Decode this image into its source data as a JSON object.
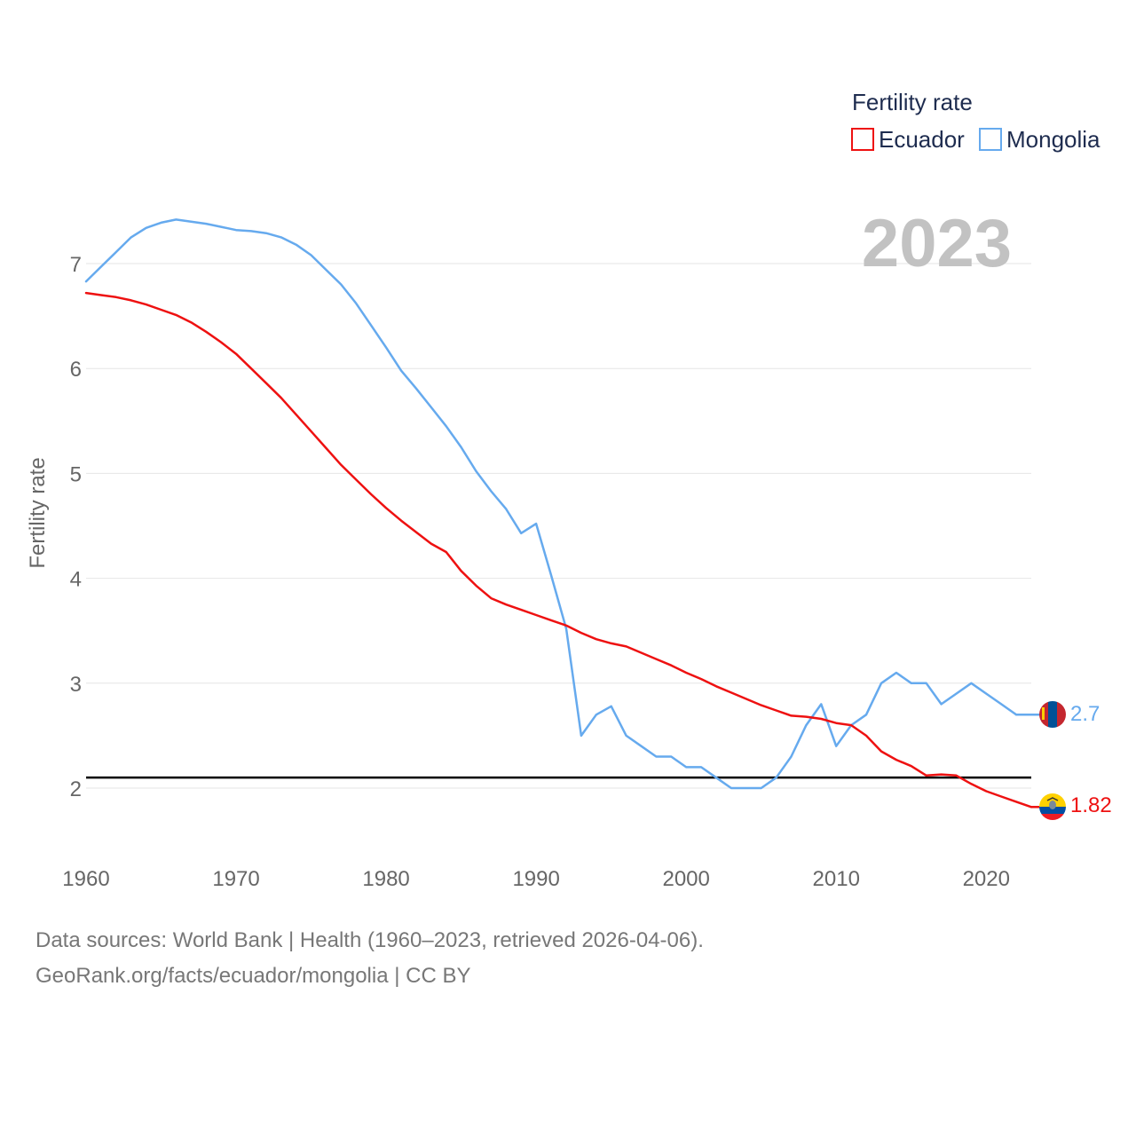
{
  "chart_data": {
    "type": "line",
    "legend_title": "Fertility rate",
    "legend_position": "top-right",
    "ylabel": "Fertility rate",
    "year_label": "2023",
    "xlim": [
      1960,
      2023
    ],
    "ylim": [
      1.6,
      7.6
    ],
    "x_ticks": [
      "1960",
      "1970",
      "1980",
      "1990",
      "2000",
      "2010",
      "2020"
    ],
    "y_ticks": [
      "2",
      "3",
      "4",
      "5",
      "6",
      "7"
    ],
    "reference_line": 2.1,
    "x": [
      1960,
      1961,
      1962,
      1963,
      1964,
      1965,
      1966,
      1967,
      1968,
      1969,
      1970,
      1971,
      1972,
      1973,
      1974,
      1975,
      1976,
      1977,
      1978,
      1979,
      1980,
      1981,
      1982,
      1983,
      1984,
      1985,
      1986,
      1987,
      1988,
      1989,
      1990,
      1991,
      1992,
      1993,
      1994,
      1995,
      1996,
      1997,
      1998,
      1999,
      2000,
      2001,
      2002,
      2003,
      2004,
      2005,
      2006,
      2007,
      2008,
      2009,
      2010,
      2011,
      2012,
      2013,
      2014,
      2015,
      2016,
      2017,
      2018,
      2019,
      2020,
      2021,
      2022,
      2023
    ],
    "series": [
      {
        "name": "Ecuador",
        "color": "#ee1111",
        "end_label": "1.82",
        "values": [
          6.72,
          6.7,
          6.68,
          6.65,
          6.61,
          6.56,
          6.51,
          6.44,
          6.35,
          6.25,
          6.14,
          6.0,
          5.86,
          5.72,
          5.56,
          5.4,
          5.24,
          5.08,
          4.94,
          4.8,
          4.67,
          4.55,
          4.44,
          4.33,
          4.25,
          4.07,
          3.93,
          3.81,
          3.75,
          3.7,
          3.65,
          3.6,
          3.55,
          3.48,
          3.42,
          3.38,
          3.35,
          3.29,
          3.23,
          3.17,
          3.1,
          3.04,
          2.97,
          2.91,
          2.85,
          2.79,
          2.74,
          2.69,
          2.68,
          2.66,
          2.62,
          2.6,
          2.5,
          2.35,
          2.27,
          2.21,
          2.12,
          2.13,
          2.12,
          2.04,
          1.97,
          1.92,
          1.87,
          1.82
        ]
      },
      {
        "name": "Mongolia",
        "color": "#66aaee",
        "end_label": "2.7",
        "values": [
          6.83,
          6.97,
          7.11,
          7.25,
          7.34,
          7.39,
          7.42,
          7.4,
          7.38,
          7.35,
          7.32,
          7.31,
          7.29,
          7.25,
          7.18,
          7.08,
          6.94,
          6.8,
          6.62,
          6.41,
          6.2,
          5.98,
          5.81,
          5.63,
          5.45,
          5.25,
          5.02,
          4.83,
          4.66,
          4.43,
          4.52,
          4.03,
          3.52,
          2.5,
          2.7,
          2.78,
          2.5,
          2.4,
          2.3,
          2.3,
          2.2,
          2.2,
          2.1,
          2.0,
          2.0,
          2.0,
          2.1,
          2.3,
          2.6,
          2.8,
          2.4,
          2.6,
          2.7,
          3.0,
          3.1,
          3.0,
          3.0,
          2.8,
          2.9,
          3.0,
          2.9,
          2.8,
          2.7,
          2.7
        ]
      }
    ]
  },
  "footer": {
    "line1": "Data sources: World Bank | Health (1960–2023, retrieved 2026-04-06).",
    "line2": "GeoRank.org/facts/ecuador/mongolia | CC BY"
  }
}
